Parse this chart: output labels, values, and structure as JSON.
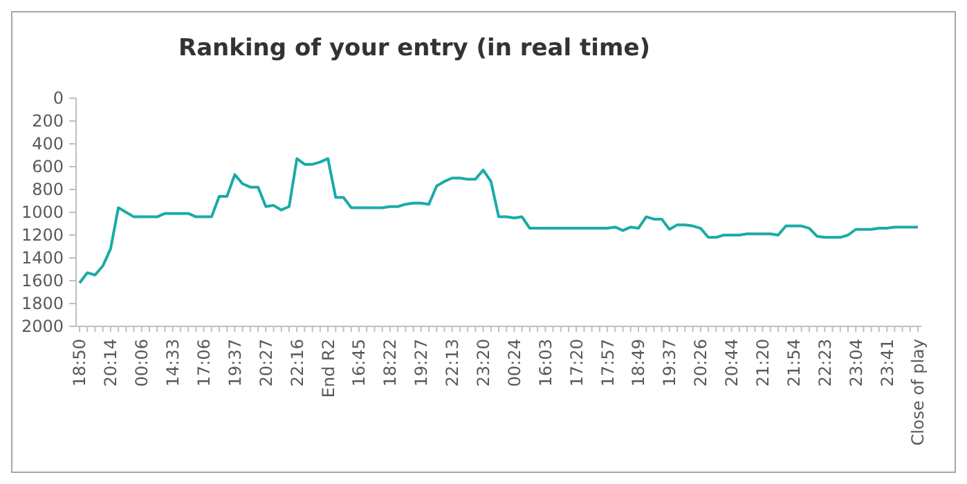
{
  "chart_data": {
    "type": "line",
    "title": "Ranking of your entry (in real time)",
    "categories": [
      "18:50",
      null,
      null,
      null,
      "20:14",
      null,
      null,
      null,
      "00:06",
      null,
      null,
      null,
      "14:33",
      null,
      null,
      null,
      "17:06",
      null,
      null,
      null,
      "19:37",
      null,
      null,
      null,
      "20:27",
      null,
      null,
      null,
      "22:16",
      null,
      null,
      null,
      "End R2",
      null,
      null,
      null,
      "16:45",
      null,
      null,
      null,
      "18:22",
      null,
      null,
      null,
      "19:27",
      null,
      null,
      null,
      "22:13",
      null,
      null,
      null,
      "23:20",
      null,
      null,
      null,
      "00:24",
      null,
      null,
      null,
      "16:03",
      null,
      null,
      null,
      "17:20",
      null,
      null,
      null,
      "17:57",
      null,
      null,
      null,
      "18:49",
      null,
      null,
      null,
      "19:37",
      null,
      null,
      null,
      "20:26",
      null,
      null,
      null,
      "20:44",
      null,
      null,
      null,
      "21:20",
      null,
      null,
      null,
      "21:54",
      null,
      null,
      null,
      "22:23",
      null,
      null,
      null,
      "23:04",
      null,
      null,
      null,
      "23:41",
      null,
      null,
      null,
      "Close of play"
    ],
    "series": [
      {
        "color": "#1aaba8",
        "values": [
          1620,
          1530,
          1550,
          1470,
          1320,
          960,
          1000,
          1040,
          1040,
          1040,
          1040,
          1010,
          1010,
          1010,
          1010,
          1040,
          1040,
          1040,
          860,
          860,
          670,
          750,
          780,
          780,
          950,
          940,
          980,
          950,
          530,
          580,
          580,
          560,
          530,
          870,
          870,
          960,
          960,
          960,
          960,
          960,
          950,
          950,
          930,
          920,
          920,
          930,
          770,
          730,
          700,
          700,
          710,
          710,
          630,
          730,
          1040,
          1040,
          1050,
          1040,
          1140,
          1140,
          1140,
          1140,
          1140,
          1140,
          1140,
          1140,
          1140,
          1140,
          1140,
          1130,
          1160,
          1130,
          1140,
          1040,
          1060,
          1060,
          1150,
          1110,
          1110,
          1120,
          1140,
          1220,
          1220,
          1200,
          1200,
          1200,
          1190,
          1190,
          1190,
          1190,
          1200,
          1120,
          1120,
          1120,
          1140,
          1210,
          1220,
          1220,
          1220,
          1200,
          1150,
          1150,
          1150,
          1140,
          1140,
          1130,
          1130,
          1130,
          1130
        ]
      }
    ],
    "ylim": [
      2000,
      0
    ],
    "yticks": [
      0,
      200,
      400,
      600,
      800,
      1000,
      1200,
      1400,
      1600,
      1800,
      2000
    ],
    "grid": false,
    "marker": "none",
    "line_style": "solid"
  }
}
